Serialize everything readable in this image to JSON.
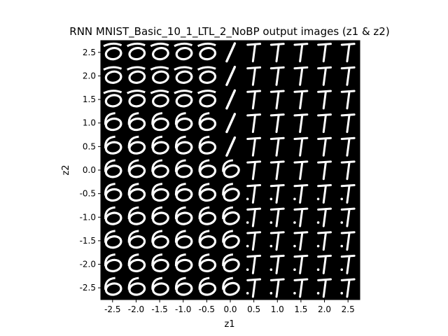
{
  "chart_data": {
    "type": "heatmap",
    "title": "RNN MNIST_Basic_10_1_LTL_2_NoBP output images (z1 & z2)",
    "xlabel": "z1",
    "ylabel": "z2",
    "xlim": [
      -2.75,
      2.75
    ],
    "ylim": [
      -2.75,
      2.75
    ],
    "x_ticks": [
      -2.5,
      -2.0,
      -1.5,
      -1.0,
      -0.5,
      0.0,
      0.5,
      1.0,
      1.5,
      2.0,
      2.5
    ],
    "y_ticks": [
      -2.5,
      -2.0,
      -1.5,
      -1.0,
      -0.5,
      0.0,
      0.5,
      1.0,
      1.5,
      2.0,
      2.5
    ],
    "x_tick_labels": [
      "-2.5",
      "-2.0",
      "-1.5",
      "-1.0",
      "-0.5",
      "0.0",
      "0.5",
      "1.0",
      "1.5",
      "2.0",
      "2.5"
    ],
    "y_tick_labels": [
      "-2.5",
      "-2.0",
      "-1.5",
      "-1.0",
      "-0.5",
      "0.0",
      "0.5",
      "1.0",
      "1.5",
      "2.0",
      "2.5"
    ],
    "grid": false,
    "background_color": "#000000",
    "mark_color": "#ffffff",
    "cell_description": "generated digit image per (z1, z2) grid point, 11 x 11 cells"
  }
}
